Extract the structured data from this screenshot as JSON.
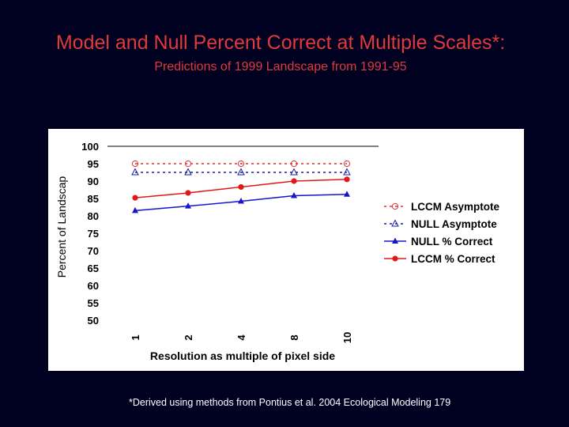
{
  "slide": {
    "title": "Model and Null Percent Correct at Multiple Scales*:",
    "subtitle": "Predictions of 1999 Landscape from 1991-95",
    "footnote": "*Derived using methods from Pontius et al. 2004 Ecological Modeling 179"
  },
  "chart_data": {
    "type": "line",
    "title": "",
    "xlabel": "Resolution as multiple of pixel side",
    "ylabel": "Percent of Landscap",
    "categories": [
      "1",
      "2",
      "4",
      "8",
      "10"
    ],
    "ylim": [
      50,
      100
    ],
    "yticks": [
      "100",
      "95",
      "90",
      "85",
      "80",
      "75",
      "70",
      "65",
      "60",
      "55",
      "50"
    ],
    "legend_position": "right",
    "grid": false,
    "series": [
      {
        "name": "LCCM Asymptote",
        "values": [
          95,
          95,
          95,
          95,
          95
        ],
        "color": "#e03030",
        "style": "dotted",
        "marker": "open-circle"
      },
      {
        "name": "NULL Asymptote",
        "values": [
          92.5,
          92.5,
          92.5,
          92.5,
          92.5
        ],
        "color": "#1a1aa0",
        "style": "dotted",
        "marker": "open-triangle"
      },
      {
        "name": "NULL % Correct",
        "values": [
          81.5,
          82.8,
          84.2,
          85.8,
          86.2
        ],
        "color": "#1515d0",
        "style": "solid",
        "marker": "filled-triangle"
      },
      {
        "name": "LCCM % Correct",
        "values": [
          85.2,
          86.6,
          88.3,
          90.0,
          90.5
        ],
        "color": "#e01818",
        "style": "solid",
        "marker": "filled-circle"
      }
    ]
  }
}
